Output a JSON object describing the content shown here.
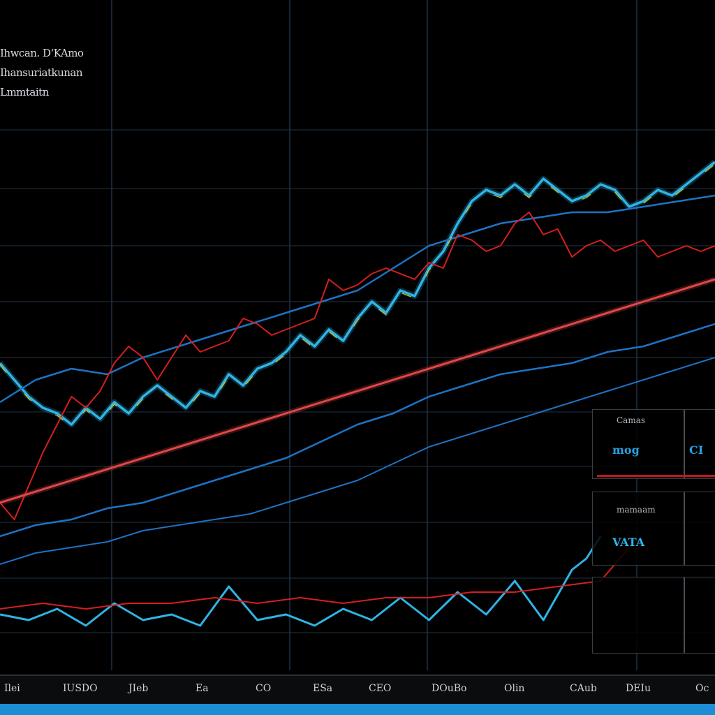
{
  "header": {
    "lines": [
      "Ihwcan. D‘KAmo",
      "Ihansuriatkunan",
      "Lmmtaitn"
    ]
  },
  "panels": {
    "top": {
      "label": "Camas",
      "value": "mog",
      "value2": "CI"
    },
    "mid": {
      "label": "mamaam",
      "value": "VATA"
    }
  },
  "footer": {
    "items": [
      "Ilei",
      "IUSDO",
      "JIeb",
      "Ea",
      "CO",
      "ESa",
      "CEO",
      "DOuBo",
      "Olin",
      "CAub",
      "DEIu",
      "Oc"
    ]
  },
  "colors": {
    "background": "#000000",
    "grid": "#1f3346",
    "cyan": "#2fb4e6",
    "blue": "#1d73c4",
    "red": "#d81e1e",
    "yellow": "#d9c21a",
    "trend": "#e04848"
  },
  "chart_data": {
    "type": "line",
    "title": "",
    "xlabel": "",
    "ylabel": "",
    "xlim": [
      0,
      100
    ],
    "ylim": [
      0,
      100
    ],
    "grid": true,
    "series": [
      {
        "x": [
          0,
          2,
          4,
          6,
          8,
          10,
          12,
          14,
          16,
          18,
          20,
          22,
          24,
          26,
          28,
          30,
          32,
          34,
          36,
          38,
          40,
          42,
          44,
          46,
          48,
          50,
          52,
          54,
          56,
          58,
          60,
          62,
          64,
          66,
          68,
          70,
          72,
          74,
          76,
          78,
          80,
          82,
          84,
          86,
          88,
          90,
          92,
          94,
          96,
          98,
          100
        ],
        "values": [
          55,
          52,
          49,
          47,
          46,
          44,
          47,
          45,
          48,
          46,
          49,
          51,
          49,
          47,
          50,
          49,
          53,
          51,
          54,
          55,
          57,
          60,
          58,
          61,
          59,
          63,
          66,
          64,
          68,
          67,
          72,
          75,
          80,
          84,
          86,
          85,
          87,
          85,
          88,
          86,
          84,
          85,
          87,
          86,
          83,
          84,
          86,
          85,
          87,
          89,
          91
        ]
      },
      {
        "x": [
          0,
          5,
          10,
          15,
          20,
          25,
          30,
          35,
          40,
          45,
          50,
          55,
          60,
          65,
          70,
          75,
          80,
          85,
          90,
          95,
          100
        ],
        "values": [
          48,
          52,
          54,
          53,
          56,
          58,
          60,
          62,
          64,
          66,
          68,
          72,
          76,
          78,
          80,
          81,
          82,
          82,
          83,
          84,
          85
        ]
      },
      {
        "x": [
          0,
          2,
          4,
          6,
          8,
          10,
          12,
          14,
          16,
          18,
          20,
          22,
          24,
          26,
          28,
          30,
          32,
          34,
          36,
          38,
          40,
          42,
          44,
          46,
          48,
          50,
          52,
          54,
          56,
          58,
          60,
          62,
          64,
          66,
          68,
          70,
          72,
          74,
          76,
          78,
          80,
          82,
          84,
          86,
          88,
          90,
          92,
          94,
          96,
          98,
          100
        ],
        "values": [
          30,
          27,
          33,
          39,
          44,
          49,
          47,
          50,
          55,
          58,
          56,
          52,
          56,
          60,
          57,
          58,
          59,
          63,
          62,
          60,
          61,
          62,
          63,
          70,
          68,
          69,
          71,
          72,
          71,
          70,
          73,
          72,
          78,
          77,
          75,
          76,
          80,
          82,
          78,
          79,
          74,
          76,
          77,
          75,
          76,
          77,
          74,
          75,
          76,
          75,
          76
        ]
      },
      {
        "x": [
          0,
          10,
          20,
          30,
          40,
          50,
          60,
          70,
          80,
          90,
          100
        ],
        "values": [
          30,
          34,
          38,
          42,
          46,
          50,
          54,
          58,
          62,
          66,
          70
        ]
      },
      {
        "x": [
          0,
          5,
          10,
          15,
          20,
          25,
          30,
          35,
          40,
          45,
          50,
          55,
          60,
          65,
          70,
          75,
          80,
          85,
          90,
          95,
          100
        ],
        "values": [
          24,
          26,
          27,
          29,
          30,
          32,
          34,
          36,
          38,
          41,
          44,
          46,
          49,
          51,
          53,
          54,
          55,
          57,
          58,
          60,
          62
        ]
      },
      {
        "x": [
          0,
          5,
          10,
          15,
          20,
          25,
          30,
          35,
          40,
          45,
          50,
          55,
          60,
          65,
          70,
          75,
          80,
          85,
          90,
          95,
          100
        ],
        "values": [
          19,
          21,
          22,
          23,
          25,
          26,
          27,
          28,
          30,
          32,
          34,
          37,
          40,
          42,
          44,
          46,
          48,
          50,
          52,
          54,
          56
        ]
      },
      {
        "x": [
          0,
          4,
          8,
          12,
          16,
          20,
          24,
          28,
          32,
          36,
          40,
          44,
          48,
          52,
          56,
          60,
          64,
          68,
          72,
          76,
          80,
          82,
          84
        ],
        "values": [
          10,
          9,
          11,
          8,
          12,
          9,
          10,
          8,
          15,
          9,
          10,
          8,
          11,
          9,
          13,
          9,
          14,
          10,
          16,
          9,
          18,
          20,
          24
        ]
      },
      {
        "x": [
          0,
          6,
          12,
          18,
          24,
          30,
          36,
          42,
          48,
          54,
          60,
          66,
          72,
          78,
          84,
          88
        ],
        "values": [
          11,
          12,
          11,
          12,
          12,
          13,
          12,
          13,
          12,
          13,
          13,
          14,
          14,
          15,
          16,
          22
        ]
      }
    ]
  }
}
